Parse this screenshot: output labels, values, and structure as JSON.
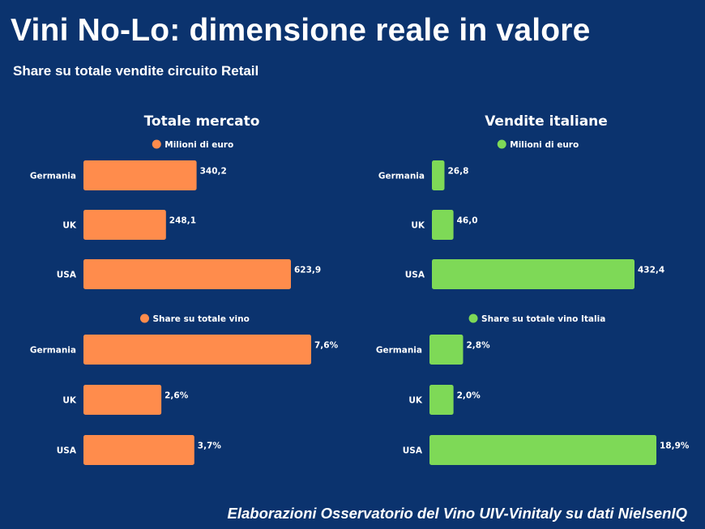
{
  "header": {
    "title": "Vini No-Lo: dimensione reale in valore",
    "subtitle": "Share su totale vendite circuito Retail"
  },
  "footer": {
    "source": "Elaborazioni Osservatorio del Vino UIV-Vinitaly su dati NielsenIQ"
  },
  "colors": {
    "background": "#0b336e",
    "totale": "#ff8c4c",
    "italiane": "#7ed957",
    "text": "#ffffff"
  },
  "chart_data": [
    {
      "type": "bar",
      "orientation": "horizontal",
      "title": "Totale mercato",
      "legend": "Milioni di euro",
      "legend_position": "top-center",
      "categories": [
        "Germania",
        "UK",
        "USA"
      ],
      "values": [
        340.2,
        248.1,
        623.9
      ],
      "labels": [
        "340,2",
        "248,1",
        "623,9"
      ],
      "color": "#ff8c4c",
      "grid": false
    },
    {
      "type": "bar",
      "orientation": "horizontal",
      "title": "Vendite italiane",
      "legend": "Milioni di euro",
      "legend_position": "top-center",
      "categories": [
        "Germania",
        "UK",
        "USA"
      ],
      "values": [
        26.8,
        46.0,
        432.4
      ],
      "labels": [
        "26,8",
        "46,0",
        "432,4"
      ],
      "color": "#7ed957",
      "grid": false
    },
    {
      "type": "bar",
      "orientation": "horizontal",
      "title": "",
      "legend": "Share su totale vino",
      "legend_position": "top-center",
      "categories": [
        "Germania",
        "UK",
        "USA"
      ],
      "values": [
        7.6,
        2.6,
        3.7
      ],
      "labels": [
        "7,6%",
        "2,6%",
        "3,7%"
      ],
      "color": "#ff8c4c",
      "grid": false
    },
    {
      "type": "bar",
      "orientation": "horizontal",
      "title": "",
      "legend": "Share su totale vino Italia",
      "legend_position": "top-center",
      "categories": [
        "Germania",
        "UK",
        "USA"
      ],
      "values": [
        2.8,
        2.0,
        18.9
      ],
      "labels": [
        "2,8%",
        "2,0%",
        "18,9%"
      ],
      "color": "#7ed957",
      "grid": false
    }
  ]
}
